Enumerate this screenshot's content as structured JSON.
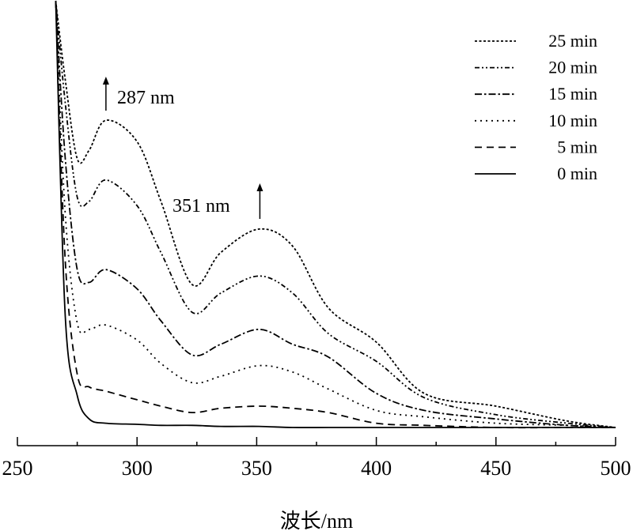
{
  "chart_data": {
    "type": "line",
    "title": "",
    "xlabel": "波长/nm",
    "ylabel": "",
    "xlim": [
      250,
      500
    ],
    "ylim": [
      0,
      2.0
    ],
    "x_ticks": [
      250,
      300,
      350,
      400,
      450,
      500
    ],
    "x_minor_ticks": [
      275,
      325,
      375,
      425,
      475
    ],
    "grid": false,
    "legend_position": "top-right",
    "x": [
      266,
      270,
      275,
      280,
      287,
      300,
      310,
      323,
      335,
      351,
      365,
      380,
      400,
      420,
      450,
      480,
      500
    ],
    "series": [
      {
        "name": "25 min",
        "style": "short-dash",
        "values": [
          2.0,
          1.63,
          1.26,
          1.3,
          1.44,
          1.34,
          1.06,
          0.67,
          0.82,
          0.93,
          0.85,
          0.56,
          0.4,
          0.16,
          0.1,
          0.03,
          0.0
        ]
      },
      {
        "name": "20 min",
        "style": "dash-dot-dot",
        "values": [
          2.0,
          1.52,
          1.08,
          1.06,
          1.16,
          1.04,
          0.82,
          0.54,
          0.63,
          0.71,
          0.63,
          0.44,
          0.31,
          0.14,
          0.06,
          0.02,
          0.0
        ]
      },
      {
        "name": "15 min",
        "style": "dash-dot",
        "values": [
          2.0,
          1.26,
          0.74,
          0.68,
          0.74,
          0.65,
          0.5,
          0.34,
          0.39,
          0.46,
          0.39,
          0.33,
          0.16,
          0.08,
          0.04,
          0.01,
          0.0
        ]
      },
      {
        "name": "10 min",
        "style": "dotted",
        "values": [
          2.0,
          1.0,
          0.49,
          0.46,
          0.48,
          0.41,
          0.3,
          0.21,
          0.24,
          0.29,
          0.26,
          0.18,
          0.08,
          0.05,
          0.02,
          0.01,
          0.0
        ]
      },
      {
        "name": "5 min",
        "style": "dashed",
        "values": [
          2.0,
          0.78,
          0.25,
          0.19,
          0.17,
          0.13,
          0.1,
          0.07,
          0.09,
          0.1,
          0.09,
          0.07,
          0.02,
          0.01,
          0.0,
          0.0,
          0.0
        ]
      },
      {
        "name": "0 min",
        "style": "solid",
        "values": [
          2.0,
          0.52,
          0.15,
          0.04,
          0.02,
          0.015,
          0.01,
          0.01,
          0.005,
          0.005,
          0.0,
          0.0,
          0.0,
          0.0,
          0.0,
          0.0,
          0.0
        ]
      }
    ],
    "annotations": [
      {
        "text": "287 nm",
        "x": 287,
        "arrow": "up"
      },
      {
        "text": "351 nm",
        "x": 351,
        "arrow": "up"
      }
    ],
    "line_color": "#000000"
  }
}
